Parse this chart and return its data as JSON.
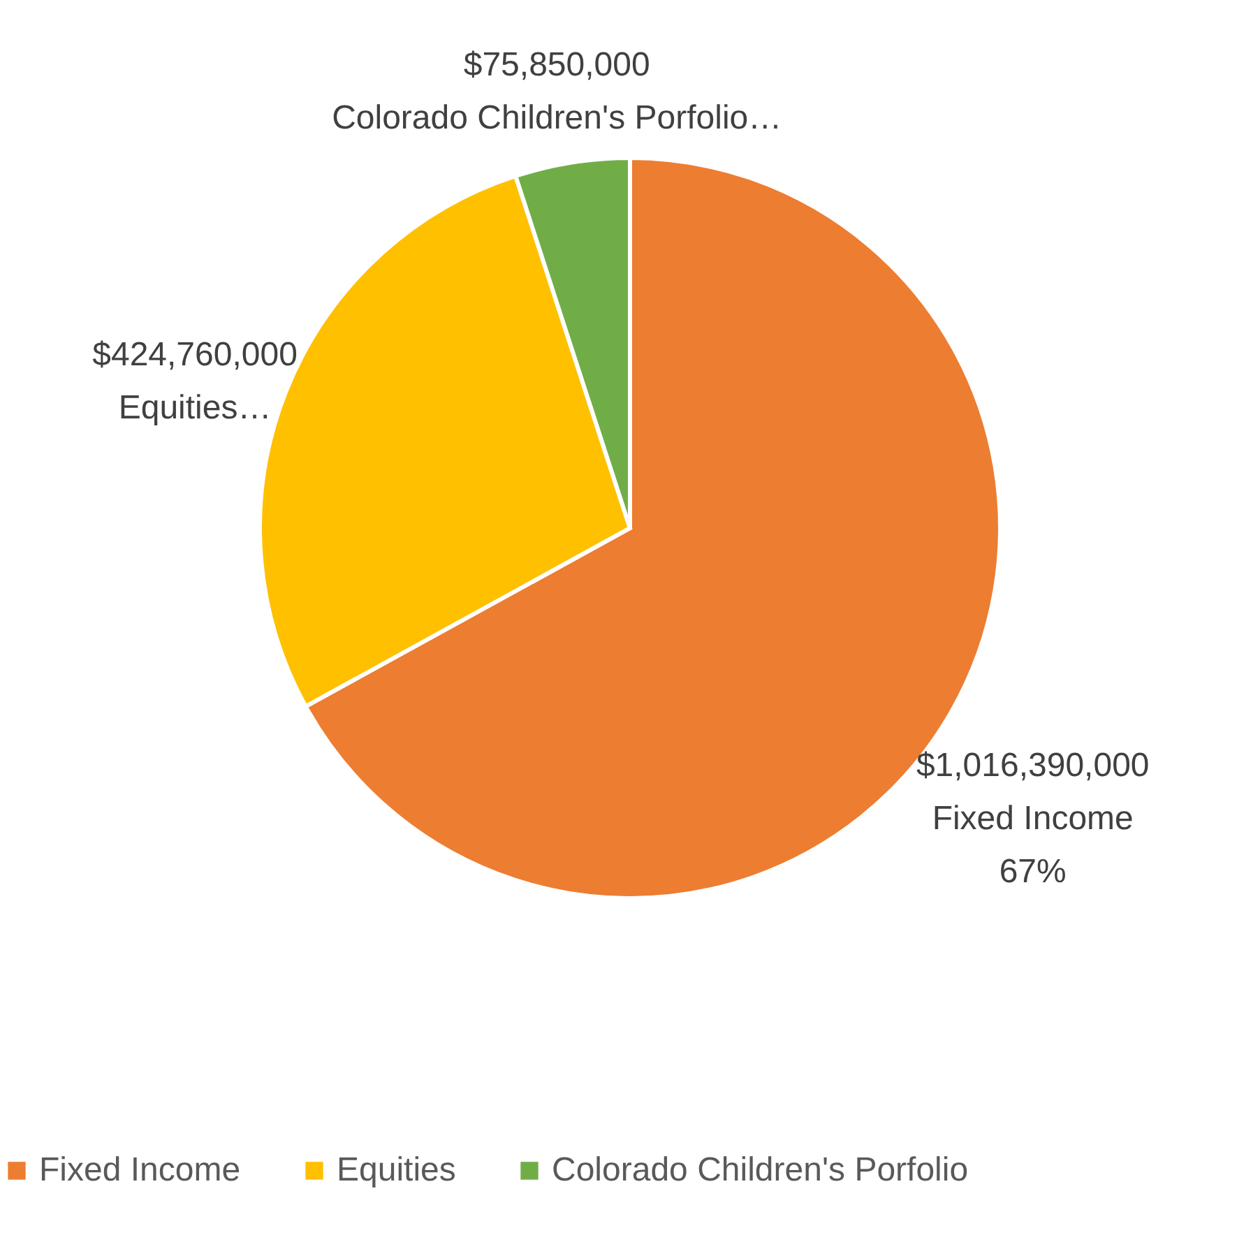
{
  "chart_data": {
    "type": "pie",
    "categories": [
      "Fixed Income",
      "Equities",
      "Colorado Children's Porfolio"
    ],
    "values": [
      1016390000,
      424760000,
      75850000
    ],
    "colors": [
      "#ed7d31",
      "#ffc000",
      "#70ad47"
    ],
    "value_labels": [
      "$1,016,390,000\nFixed Income\n67%",
      "$424,760,000\nEquities…",
      "$75,850,000\nColorado Children's Porfolio…"
    ],
    "legend": "bottom"
  }
}
